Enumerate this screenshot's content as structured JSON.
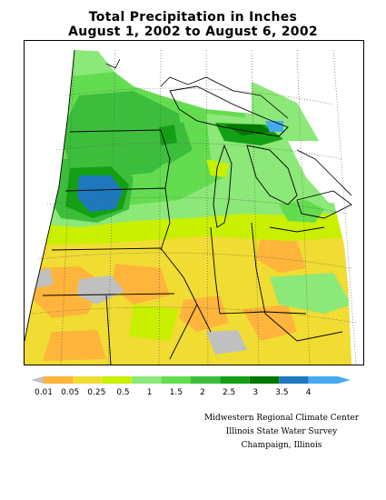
{
  "title": {
    "line1": "Total Precipitation in Inches",
    "line2": "August 1, 2002 to August 6, 2002"
  },
  "legend": {
    "labels": [
      "0.01",
      "0.05",
      "0.25",
      "0.5",
      "1",
      "1.5",
      "2",
      "2.5",
      "3",
      "3.5",
      "4"
    ],
    "colors": [
      "#c0c0c0",
      "#ffb43c",
      "#f0dc32",
      "#c8f000",
      "#8ce878",
      "#64dc50",
      "#3cbe3c",
      "#14a014",
      "#007800",
      "#1e78be",
      "#46aaf0"
    ]
  },
  "credits": {
    "line1": "Midwestern Regional Climate Center",
    "line2": "Illinois State Water Survey",
    "line3": "Champaign, Illinois"
  }
}
